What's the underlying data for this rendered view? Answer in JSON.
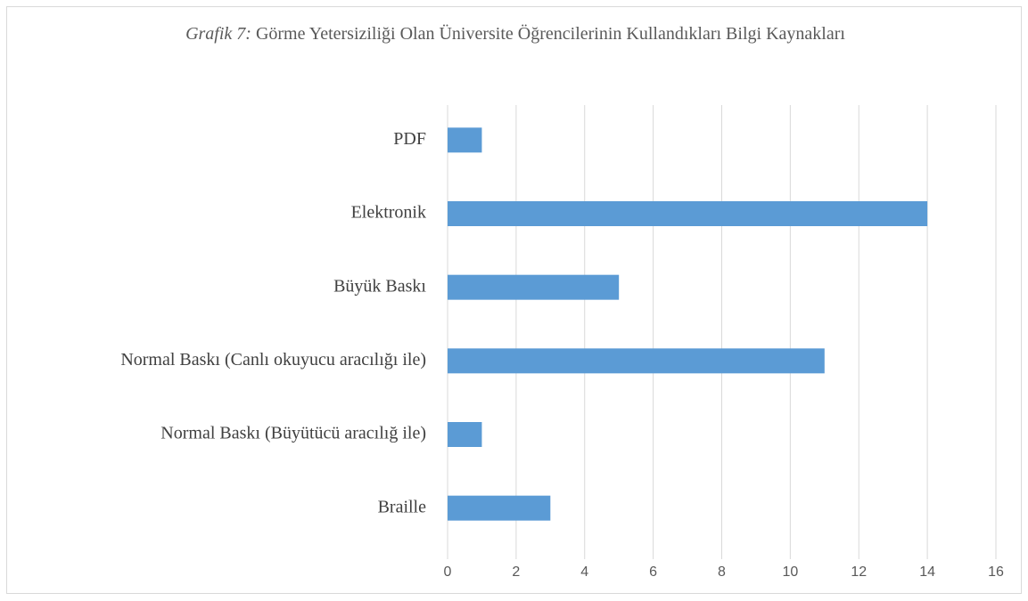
{
  "chart_data": {
    "type": "bar",
    "orientation": "horizontal",
    "title_prefix": "Grafik 7:",
    "title": "Görme Yetersiziliği Olan Üniversite Öğrencilerinin Kullandıkları Bilgi Kaynakları",
    "categories": [
      "PDF",
      "Elektronik",
      "Büyük Baskı",
      "Normal Baskı (Canlı okuyucu aracılığı ile)",
      "Normal Baskı (Büyütücü aracılığ ile)",
      "Braille"
    ],
    "values": [
      1,
      14,
      5,
      11,
      1,
      3
    ],
    "color": "#5b9bd5",
    "xlim": [
      0,
      16
    ],
    "xticks": [
      0,
      2,
      4,
      6,
      8,
      10,
      12,
      14,
      16
    ],
    "grid": true
  }
}
